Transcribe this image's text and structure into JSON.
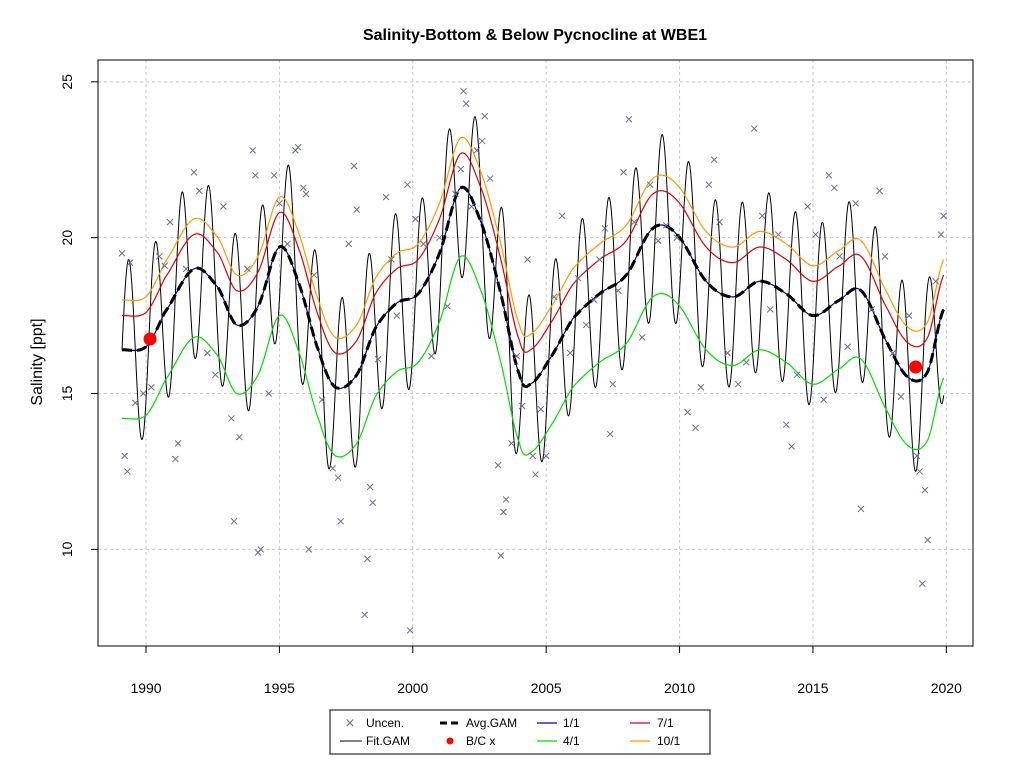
{
  "chart_data": {
    "type": "line",
    "title": "Salinity-Bottom & Below Pycnocline at WBE1",
    "xlabel": "",
    "ylabel": "Salinity [ppt]",
    "xlim": [
      1988.2,
      2021.0
    ],
    "ylim": [
      6.9,
      25.7
    ],
    "x_ticks": [
      1990,
      1995,
      2000,
      2005,
      2010,
      2015,
      2020
    ],
    "y_ticks": [
      10,
      15,
      20,
      25
    ],
    "x_tick_labels": [
      "1990",
      "1995",
      "2000",
      "2005",
      "2010",
      "2015",
      "2020"
    ],
    "y_tick_labels": [
      "10",
      "15",
      "20",
      "25"
    ],
    "grid": true,
    "legend_position": "bottom-center",
    "legend": {
      "uncen": "Uncen.",
      "avg_gam": "Avg.GAM",
      "s_1_1": "1/1",
      "s_7_1": "7/1",
      "fit_gam": "Fit.GAM",
      "bc": "B/C x",
      "s_4_1": "4/1",
      "s_10_1": "10/1"
    },
    "colors": {
      "uncen": "#6b6f86",
      "fit_gam": "#000000",
      "avg_gam": "#000000",
      "bc": "#ff0000",
      "s_1_1": "#0000b0",
      "s_4_1": "#00dd00",
      "s_7_1": "#dd0000",
      "s_10_1": "#ff9900"
    },
    "avg_gam_knots": [
      [
        1989.1,
        16.4
      ],
      [
        1990.0,
        16.5
      ],
      [
        1990.7,
        17.6
      ],
      [
        1991.8,
        19.0
      ],
      [
        1992.7,
        18.4
      ],
      [
        1993.4,
        17.2
      ],
      [
        1994.2,
        17.8
      ],
      [
        1995.0,
        19.7
      ],
      [
        1995.7,
        18.6
      ],
      [
        1996.5,
        16.3
      ],
      [
        1997.1,
        15.2
      ],
      [
        1997.9,
        15.6
      ],
      [
        1998.6,
        17.1
      ],
      [
        1999.4,
        17.9
      ],
      [
        2000.2,
        18.2
      ],
      [
        2001.0,
        19.5
      ],
      [
        2001.8,
        21.6
      ],
      [
        2002.6,
        20.4
      ],
      [
        2003.3,
        18.2
      ],
      [
        2004.0,
        15.6
      ],
      [
        2004.4,
        15.3
      ],
      [
        2005.2,
        16.2
      ],
      [
        2006.0,
        17.4
      ],
      [
        2007.0,
        18.2
      ],
      [
        2008.0,
        18.8
      ],
      [
        2009.0,
        20.3
      ],
      [
        2009.9,
        20.1
      ],
      [
        2011.0,
        18.6
      ],
      [
        2012.0,
        18.1
      ],
      [
        2013.0,
        18.6
      ],
      [
        2014.0,
        18.2
      ],
      [
        2015.0,
        17.5
      ],
      [
        2016.0,
        18.0
      ],
      [
        2016.8,
        18.3
      ],
      [
        2017.8,
        16.6
      ],
      [
        2018.6,
        15.5
      ],
      [
        2019.3,
        15.7
      ],
      [
        2019.9,
        17.7
      ]
    ],
    "series_offsets": [
      {
        "name": "1/1",
        "offset": 0.0,
        "phase": 0
      },
      {
        "name": "4/1",
        "offset": -2.2,
        "phase": 0
      },
      {
        "name": "7/1",
        "offset": 1.1,
        "phase": 0
      },
      {
        "name": "10/1",
        "offset": 1.6,
        "phase": 0
      }
    ],
    "fit_gam_amplitude": 2.9,
    "bc_points": [
      [
        1990.15,
        16.75
      ],
      [
        2018.85,
        15.85
      ]
    ],
    "uncensored_points": [
      [
        1989.1,
        19.5
      ],
      [
        1989.2,
        13.0
      ],
      [
        1989.3,
        12.5
      ],
      [
        1989.4,
        19.2
      ],
      [
        1989.6,
        14.7
      ],
      [
        1989.9,
        15.0
      ],
      [
        1990.2,
        15.2
      ],
      [
        1990.5,
        19.4
      ],
      [
        1990.7,
        19.1
      ],
      [
        1990.9,
        20.5
      ],
      [
        1991.1,
        12.9
      ],
      [
        1991.2,
        13.4
      ],
      [
        1991.5,
        19.0
      ],
      [
        1991.8,
        22.1
      ],
      [
        1992.0,
        21.5
      ],
      [
        1992.3,
        16.3
      ],
      [
        1992.6,
        15.6
      ],
      [
        1992.9,
        21.0
      ],
      [
        1993.2,
        14.2
      ],
      [
        1993.3,
        10.9
      ],
      [
        1993.5,
        13.6
      ],
      [
        1993.8,
        19.0
      ],
      [
        1994.0,
        22.8
      ],
      [
        1994.1,
        22.0
      ],
      [
        1994.2,
        9.9
      ],
      [
        1994.3,
        10.0
      ],
      [
        1994.6,
        15.0
      ],
      [
        1994.8,
        22.0
      ],
      [
        1995.0,
        21.1
      ],
      [
        1995.3,
        19.8
      ],
      [
        1995.6,
        22.8
      ],
      [
        1995.7,
        22.9
      ],
      [
        1995.9,
        21.6
      ],
      [
        1996.0,
        21.4
      ],
      [
        1996.1,
        10.0
      ],
      [
        1996.3,
        18.8
      ],
      [
        1996.6,
        14.8
      ],
      [
        1997.0,
        12.6
      ],
      [
        1997.2,
        12.3
      ],
      [
        1997.3,
        10.9
      ],
      [
        1997.6,
        19.8
      ],
      [
        1997.8,
        22.3
      ],
      [
        1997.9,
        20.9
      ],
      [
        1998.2,
        7.9
      ],
      [
        1998.3,
        9.7
      ],
      [
        1998.4,
        12.0
      ],
      [
        1998.5,
        11.5
      ],
      [
        1998.7,
        16.1
      ],
      [
        1999.0,
        21.3
      ],
      [
        1999.2,
        19.3
      ],
      [
        1999.4,
        17.5
      ],
      [
        1999.8,
        21.7
      ],
      [
        1999.9,
        7.4
      ],
      [
        2000.1,
        20.6
      ],
      [
        2000.4,
        19.8
      ],
      [
        2000.7,
        16.2
      ],
      [
        2001.0,
        20.0
      ],
      [
        2001.3,
        17.8
      ],
      [
        2001.6,
        21.4
      ],
      [
        2001.8,
        22.2
      ],
      [
        2001.9,
        24.7
      ],
      [
        2002.0,
        24.3
      ],
      [
        2002.2,
        21.0
      ],
      [
        2002.4,
        22.8
      ],
      [
        2002.6,
        23.1
      ],
      [
        2002.7,
        23.9
      ],
      [
        2002.9,
        21.9
      ],
      [
        2003.2,
        12.7
      ],
      [
        2003.3,
        9.8
      ],
      [
        2003.4,
        11.2
      ],
      [
        2003.5,
        11.6
      ],
      [
        2003.7,
        13.4
      ],
      [
        2003.9,
        16.2
      ],
      [
        2004.1,
        14.6
      ],
      [
        2004.3,
        19.3
      ],
      [
        2004.5,
        13.0
      ],
      [
        2004.6,
        12.4
      ],
      [
        2004.8,
        14.5
      ],
      [
        2005.0,
        13.0
      ],
      [
        2005.3,
        18.1
      ],
      [
        2005.6,
        20.7
      ],
      [
        2005.9,
        16.3
      ],
      [
        2006.2,
        18.7
      ],
      [
        2006.5,
        17.2
      ],
      [
        2006.8,
        18.0
      ],
      [
        2007.0,
        19.3
      ],
      [
        2007.2,
        20.3
      ],
      [
        2007.4,
        13.7
      ],
      [
        2007.5,
        15.3
      ],
      [
        2007.7,
        18.3
      ],
      [
        2007.9,
        22.1
      ],
      [
        2008.1,
        23.8
      ],
      [
        2008.3,
        20.5
      ],
      [
        2008.6,
        16.8
      ],
      [
        2008.9,
        21.7
      ],
      [
        2009.2,
        19.9
      ],
      [
        2009.5,
        20.4
      ],
      [
        2009.9,
        20.0
      ],
      [
        2010.3,
        14.4
      ],
      [
        2010.6,
        13.9
      ],
      [
        2010.8,
        15.2
      ],
      [
        2011.1,
        21.7
      ],
      [
        2011.3,
        22.5
      ],
      [
        2011.5,
        20.5
      ],
      [
        2011.8,
        16.3
      ],
      [
        2012.2,
        15.3
      ],
      [
        2012.5,
        16.0
      ],
      [
        2012.8,
        23.5
      ],
      [
        2013.1,
        20.7
      ],
      [
        2013.4,
        17.7
      ],
      [
        2013.7,
        20.1
      ],
      [
        2014.0,
        14.0
      ],
      [
        2014.2,
        13.3
      ],
      [
        2014.4,
        15.6
      ],
      [
        2014.8,
        21.0
      ],
      [
        2015.1,
        20.1
      ],
      [
        2015.4,
        14.8
      ],
      [
        2015.6,
        22.0
      ],
      [
        2015.8,
        21.6
      ],
      [
        2016.0,
        19.4
      ],
      [
        2016.3,
        16.5
      ],
      [
        2016.6,
        21.1
      ],
      [
        2016.8,
        11.3
      ],
      [
        2017.2,
        17.7
      ],
      [
        2017.5,
        21.5
      ],
      [
        2017.7,
        19.4
      ],
      [
        2018.0,
        16.3
      ],
      [
        2018.3,
        14.9
      ],
      [
        2018.6,
        17.5
      ],
      [
        2018.9,
        13.0
      ],
      [
        2019.0,
        12.5
      ],
      [
        2019.1,
        8.9
      ],
      [
        2019.2,
        11.9
      ],
      [
        2019.3,
        10.3
      ],
      [
        2019.6,
        18.6
      ],
      [
        2019.8,
        20.1
      ],
      [
        2019.9,
        20.7
      ]
    ]
  }
}
